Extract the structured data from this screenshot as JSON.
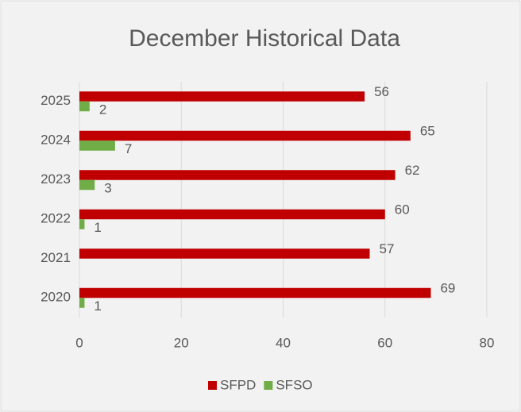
{
  "chart_data": {
    "type": "bar",
    "orientation": "horizontal",
    "title": "December Historical Data",
    "categories": [
      "2025",
      "2024",
      "2023",
      "2022",
      "2021",
      "2020"
    ],
    "series": [
      {
        "name": "SFPD",
        "color": "#c00000",
        "values": [
          56,
          65,
          62,
          60,
          57,
          69
        ]
      },
      {
        "name": "SFSO",
        "color": "#70ad47",
        "values": [
          2,
          7,
          3,
          1,
          null,
          1
        ]
      }
    ],
    "xlim": [
      0,
      80
    ],
    "xticks": [
      0,
      20,
      40,
      60,
      80
    ],
    "grid": true,
    "legend": "bottom",
    "data_labels": true
  }
}
